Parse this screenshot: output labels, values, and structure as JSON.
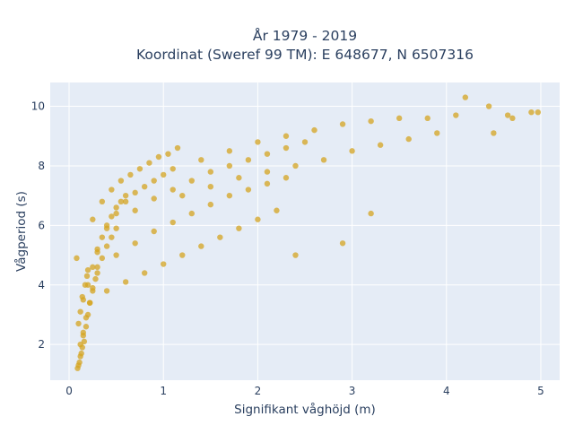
{
  "chart_data": {
    "type": "scatter",
    "title_lines": [
      "År 1979 - 2019",
      "Koordinat (Sweref 99 TM): E 648677, N 6507316"
    ],
    "xlabel": "Signifikant våghöjd (m)",
    "ylabel": "Vågperiod (s)",
    "xlim": [
      -0.2,
      5.2
    ],
    "ylim": [
      0.8,
      10.8
    ],
    "xticks": [
      0,
      1,
      2,
      3,
      4,
      5
    ],
    "yticks": [
      2,
      4,
      6,
      8,
      10
    ],
    "xtick_labels": [
      "0",
      "1",
      "2",
      "3",
      "4",
      "5"
    ],
    "ytick_labels": [
      "2",
      "4",
      "6",
      "8",
      "10"
    ],
    "grid": true,
    "plot_bg": "#e5ecf6",
    "point_color": "#d4a420",
    "point_opacity": 0.75,
    "x": [
      0.1,
      0.12,
      0.14,
      0.15,
      0.18,
      0.2,
      0.22,
      0.25,
      0.28,
      0.3,
      0.12,
      0.15,
      0.18,
      0.22,
      0.25,
      0.3,
      0.35,
      0.4,
      0.45,
      0.5,
      0.15,
      0.2,
      0.25,
      0.3,
      0.35,
      0.4,
      0.45,
      0.5,
      0.55,
      0.6,
      0.2,
      0.3,
      0.4,
      0.5,
      0.6,
      0.7,
      0.8,
      0.9,
      1.0,
      1.1,
      0.25,
      0.35,
      0.45,
      0.55,
      0.65,
      0.75,
      0.85,
      0.95,
      1.05,
      1.15,
      0.4,
      0.6,
      0.8,
      1.0,
      1.2,
      1.4,
      1.6,
      1.8,
      2.0,
      2.2,
      0.5,
      0.7,
      0.9,
      1.1,
      1.3,
      1.5,
      1.7,
      1.9,
      2.1,
      2.3,
      0.7,
      0.9,
      1.1,
      1.3,
      1.5,
      1.7,
      1.9,
      2.1,
      2.3,
      2.5,
      1.2,
      1.5,
      1.8,
      2.1,
      2.4,
      2.7,
      3.0,
      3.3,
      3.6,
      3.9,
      1.4,
      1.7,
      2.0,
      2.3,
      2.6,
      2.9,
      3.2,
      3.5,
      3.8,
      4.1,
      0.08,
      0.09,
      0.11,
      0.13,
      0.16,
      0.1,
      0.12,
      0.14,
      0.17,
      0.19,
      4.2,
      4.45,
      4.5,
      4.65,
      4.7,
      4.9,
      4.97,
      3.2,
      2.4,
      2.9
    ],
    "y": [
      1.3,
      1.6,
      1.9,
      2.3,
      2.6,
      3.0,
      3.4,
      3.8,
      4.2,
      4.6,
      2.0,
      2.4,
      2.9,
      3.4,
      3.9,
      4.4,
      4.9,
      5.3,
      5.6,
      5.9,
      3.5,
      4.0,
      4.6,
      5.1,
      5.6,
      6.0,
      6.3,
      6.6,
      6.8,
      7.0,
      4.5,
      5.2,
      5.9,
      6.4,
      6.8,
      7.1,
      7.3,
      7.5,
      7.7,
      7.9,
      6.2,
      6.8,
      7.2,
      7.5,
      7.7,
      7.9,
      8.1,
      8.3,
      8.4,
      8.6,
      3.8,
      4.1,
      4.4,
      4.7,
      5.0,
      5.3,
      5.6,
      5.9,
      6.2,
      6.5,
      5.0,
      5.4,
      5.8,
      6.1,
      6.4,
      6.7,
      7.0,
      7.2,
      7.4,
      7.6,
      6.5,
      6.9,
      7.2,
      7.5,
      7.8,
      8.0,
      8.2,
      8.4,
      8.6,
      8.8,
      7.0,
      7.3,
      7.6,
      7.8,
      8.0,
      8.2,
      8.5,
      8.7,
      8.9,
      9.1,
      8.2,
      8.5,
      8.8,
      9.0,
      9.2,
      9.4,
      9.5,
      9.6,
      9.6,
      9.7,
      4.9,
      1.2,
      1.4,
      1.7,
      2.1,
      2.7,
      3.1,
      3.6,
      4.0,
      4.3,
      10.3,
      10.0,
      9.1,
      9.7,
      9.6,
      9.8,
      9.8,
      6.4,
      5.0,
      5.4
    ]
  }
}
